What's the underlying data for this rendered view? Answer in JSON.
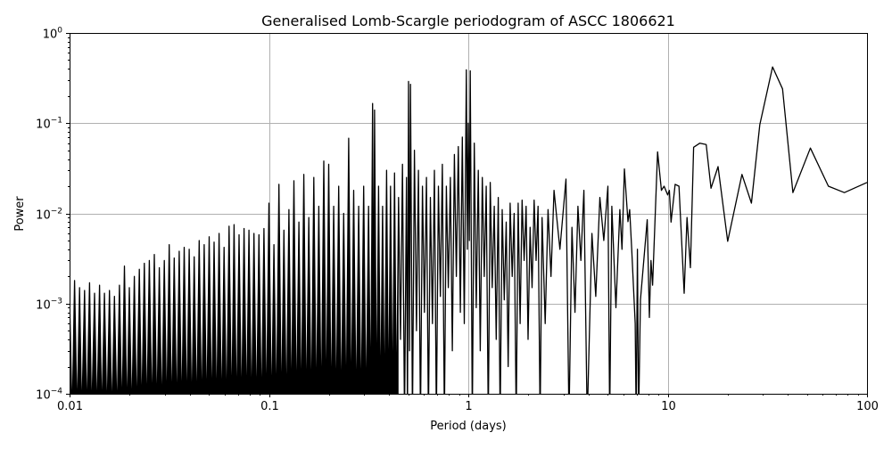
{
  "chart_data": {
    "type": "line",
    "title": "Generalised Lomb-Scargle periodogram of ASCC 1806621",
    "xlabel": "Period (days)",
    "ylabel": "Power",
    "x_scale": "log",
    "y_scale": "log",
    "xlim": [
      0.01,
      100
    ],
    "ylim": [
      0.0001,
      1
    ],
    "grid": true,
    "line_color": "#000000",
    "grid_color": "#b0b0b0",
    "x_ticks": [
      {
        "value": 0.01,
        "label": "0.01"
      },
      {
        "value": 0.1,
        "label": "0.1"
      },
      {
        "value": 1,
        "label": "1"
      },
      {
        "value": 10,
        "label": "10"
      },
      {
        "value": 100,
        "label": "100"
      }
    ],
    "y_ticks": [
      {
        "value": 0.0001,
        "base": "10",
        "exp": "−4"
      },
      {
        "value": 0.001,
        "base": "10",
        "exp": "−3"
      },
      {
        "value": 0.01,
        "base": "10",
        "exp": "−2"
      },
      {
        "value": 0.1,
        "base": "10",
        "exp": "−1"
      },
      {
        "value": 1,
        "base": "10",
        "exp": "0"
      }
    ],
    "series": [
      {
        "points": [
          [
            0.01,
            0.0012
          ],
          [
            0.0103,
            5e-05
          ],
          [
            0.01059,
            0.0018
          ],
          [
            0.0109,
            5e-05
          ],
          [
            0.01122,
            0.0015
          ],
          [
            0.0115,
            5e-05
          ],
          [
            0.01189,
            0.0014
          ],
          [
            0.0122,
            5e-05
          ],
          [
            0.01259,
            0.0017
          ],
          [
            0.0129,
            5e-05
          ],
          [
            0.01334,
            0.0013
          ],
          [
            0.0137,
            5e-05
          ],
          [
            0.01413,
            0.0016
          ],
          [
            0.0145,
            5e-05
          ],
          [
            0.01496,
            0.0013
          ],
          [
            0.0154,
            5e-05
          ],
          [
            0.01585,
            0.0014
          ],
          [
            0.0163,
            5e-05
          ],
          [
            0.01679,
            0.0012
          ],
          [
            0.0173,
            5e-05
          ],
          [
            0.01778,
            0.0016
          ],
          [
            0.0183,
            5e-05
          ],
          [
            0.01884,
            0.0026
          ],
          [
            0.0194,
            5e-05
          ],
          [
            0.01995,
            0.0015
          ],
          [
            0.0205,
            5e-05
          ],
          [
            0.02113,
            0.002
          ],
          [
            0.0217,
            5e-05
          ],
          [
            0.02239,
            0.0024
          ],
          [
            0.023,
            5e-05
          ],
          [
            0.02371,
            0.0028
          ],
          [
            0.0244,
            5e-05
          ],
          [
            0.02512,
            0.003
          ],
          [
            0.0259,
            5e-05
          ],
          [
            0.02661,
            0.0035
          ],
          [
            0.0274,
            5e-05
          ],
          [
            0.02818,
            0.0025
          ],
          [
            0.029,
            5e-05
          ],
          [
            0.02985,
            0.003
          ],
          [
            0.0307,
            5e-05
          ],
          [
            0.03162,
            0.0045
          ],
          [
            0.0325,
            5e-05
          ],
          [
            0.0335,
            0.0032
          ],
          [
            0.0345,
            5e-05
          ],
          [
            0.03548,
            0.0038
          ],
          [
            0.0365,
            5e-05
          ],
          [
            0.03758,
            0.0042
          ],
          [
            0.0387,
            5e-05
          ],
          [
            0.03981,
            0.004
          ],
          [
            0.041,
            5e-05
          ],
          [
            0.04217,
            0.0033
          ],
          [
            0.0434,
            5e-05
          ],
          [
            0.04467,
            0.005
          ],
          [
            0.046,
            5e-05
          ],
          [
            0.04732,
            0.0045
          ],
          [
            0.0487,
            5e-05
          ],
          [
            0.05012,
            0.0055
          ],
          [
            0.0516,
            5e-05
          ],
          [
            0.05309,
            0.0048
          ],
          [
            0.0547,
            5e-05
          ],
          [
            0.05623,
            0.006
          ],
          [
            0.0579,
            5e-05
          ],
          [
            0.05957,
            0.0042
          ],
          [
            0.0613,
            5e-05
          ],
          [
            0.0631,
            0.0072
          ],
          [
            0.065,
            5e-05
          ],
          [
            0.06683,
            0.0075
          ],
          [
            0.0688,
            5e-05
          ],
          [
            0.07079,
            0.0058
          ],
          [
            0.0729,
            5e-05
          ],
          [
            0.07499,
            0.0068
          ],
          [
            0.0772,
            5e-05
          ],
          [
            0.07943,
            0.0065
          ],
          [
            0.0818,
            5e-05
          ],
          [
            0.08414,
            0.006
          ],
          [
            0.0866,
            5e-05
          ],
          [
            0.08913,
            0.0058
          ],
          [
            0.0918,
            5e-05
          ],
          [
            0.09441,
            0.0068
          ],
          [
            0.0972,
            5e-05
          ],
          [
            0.1,
            0.013
          ],
          [
            0.103,
            5e-05
          ],
          [
            0.1059,
            0.0045
          ],
          [
            0.109,
            5e-05
          ],
          [
            0.1122,
            0.021
          ],
          [
            0.1155,
            5e-05
          ],
          [
            0.1189,
            0.0065
          ],
          [
            0.1224,
            5e-05
          ],
          [
            0.1259,
            0.011
          ],
          [
            0.1296,
            5e-05
          ],
          [
            0.1334,
            0.023
          ],
          [
            0.1373,
            5e-05
          ],
          [
            0.1413,
            0.008
          ],
          [
            0.1454,
            5e-05
          ],
          [
            0.1496,
            0.027
          ],
          [
            0.154,
            5e-05
          ],
          [
            0.1585,
            0.009
          ],
          [
            0.1631,
            5e-05
          ],
          [
            0.1679,
            0.025
          ],
          [
            0.1728,
            5e-05
          ],
          [
            0.1778,
            0.012
          ],
          [
            0.183,
            5e-05
          ],
          [
            0.1884,
            0.038
          ],
          [
            0.1939,
            5e-05
          ],
          [
            0.1995,
            0.035
          ],
          [
            0.2053,
            5e-05
          ],
          [
            0.2113,
            0.012
          ],
          [
            0.2175,
            5e-05
          ],
          [
            0.2239,
            0.02
          ],
          [
            0.2304,
            5e-05
          ],
          [
            0.2371,
            0.01
          ],
          [
            0.244,
            5e-05
          ],
          [
            0.2512,
            0.068
          ],
          [
            0.2585,
            5e-05
          ],
          [
            0.2661,
            0.018
          ],
          [
            0.2738,
            5e-05
          ],
          [
            0.2818,
            0.012
          ],
          [
            0.29,
            5e-05
          ],
          [
            0.2985,
            0.02
          ],
          [
            0.3072,
            5e-05
          ],
          [
            0.3162,
            0.012
          ],
          [
            0.3236,
            5e-05
          ],
          [
            0.3311,
            0.165
          ],
          [
            0.335,
            0.0002
          ],
          [
            0.3388,
            0.14
          ],
          [
            0.3467,
            5e-05
          ],
          [
            0.3548,
            0.02
          ],
          [
            0.3631,
            5e-05
          ],
          [
            0.3715,
            0.012
          ],
          [
            0.3802,
            5e-05
          ],
          [
            0.389,
            0.03
          ],
          [
            0.3981,
            5e-05
          ],
          [
            0.4074,
            0.02
          ],
          [
            0.4169,
            5e-05
          ],
          [
            0.4266,
            0.028
          ],
          [
            0.4365,
            5e-05
          ],
          [
            0.4467,
            0.015
          ],
          [
            0.4571,
            0.0004
          ],
          [
            0.4677,
            0.035
          ],
          [
            0.4786,
            5e-05
          ],
          [
            0.4898,
            0.025
          ],
          [
            0.4955,
            5e-05
          ],
          [
            0.5012,
            0.29
          ],
          [
            0.507,
            0.0003
          ],
          [
            0.5129,
            0.27
          ],
          [
            0.5248,
            5e-05
          ],
          [
            0.537,
            0.05
          ],
          [
            0.5495,
            0.0005
          ],
          [
            0.5623,
            0.03
          ],
          [
            0.5754,
            5e-05
          ],
          [
            0.5888,
            0.02
          ],
          [
            0.6026,
            0.0008
          ],
          [
            0.6166,
            0.025
          ],
          [
            0.631,
            5e-05
          ],
          [
            0.6457,
            0.015
          ],
          [
            0.6607,
            0.0006
          ],
          [
            0.6761,
            0.03
          ],
          [
            0.6918,
            5e-05
          ],
          [
            0.7079,
            0.02
          ],
          [
            0.7244,
            0.0012
          ],
          [
            0.7413,
            0.035
          ],
          [
            0.7586,
            5e-05
          ],
          [
            0.7762,
            0.02
          ],
          [
            0.7943,
            0.0015
          ],
          [
            0.8128,
            0.025
          ],
          [
            0.8318,
            0.0003
          ],
          [
            0.8511,
            0.045
          ],
          [
            0.871,
            0.002
          ],
          [
            0.8913,
            0.055
          ],
          [
            0.912,
            0.0008
          ],
          [
            0.9333,
            0.07
          ],
          [
            0.955,
            0.0006
          ],
          [
            0.9772,
            0.39
          ],
          [
            0.9886,
            0.004
          ],
          [
            1.0,
            0.1
          ],
          [
            1.011,
            0.005
          ],
          [
            1.023,
            0.38
          ],
          [
            1.047,
            5e-05
          ],
          [
            1.072,
            0.06
          ],
          [
            1.096,
            0.0009
          ],
          [
            1.122,
            0.03
          ],
          [
            1.148,
            0.0003
          ],
          [
            1.175,
            0.025
          ],
          [
            1.202,
            0.002
          ],
          [
            1.23,
            0.02
          ],
          [
            1.259,
            5e-05
          ],
          [
            1.288,
            0.022
          ],
          [
            1.318,
            0.0015
          ],
          [
            1.349,
            0.012
          ],
          [
            1.38,
            0.0004
          ],
          [
            1.413,
            0.015
          ],
          [
            1.445,
            5e-05
          ],
          [
            1.479,
            0.011
          ],
          [
            1.514,
            0.0011
          ],
          [
            1.549,
            0.008
          ],
          [
            1.585,
            0.0002
          ],
          [
            1.622,
            0.013
          ],
          [
            1.66,
            0.002
          ],
          [
            1.698,
            0.01
          ],
          [
            1.738,
            5e-05
          ],
          [
            1.778,
            0.013
          ],
          [
            1.82,
            0.0006
          ],
          [
            1.862,
            0.014
          ],
          [
            1.905,
            0.003
          ],
          [
            1.95,
            0.012
          ],
          [
            1.995,
            0.0004
          ],
          [
            2.042,
            0.007
          ],
          [
            2.089,
            0.0015
          ],
          [
            2.138,
            0.014
          ],
          [
            2.188,
            0.003
          ],
          [
            2.239,
            0.012
          ],
          [
            2.291,
            5e-05
          ],
          [
            2.344,
            0.009
          ],
          [
            2.43,
            0.0006
          ],
          [
            2.512,
            0.011
          ],
          [
            2.6,
            0.002
          ],
          [
            2.692,
            0.018
          ],
          [
            2.88,
            0.004
          ],
          [
            3.09,
            0.024
          ],
          [
            3.2,
            5e-05
          ],
          [
            3.311,
            0.007
          ],
          [
            3.43,
            0.0008
          ],
          [
            3.548,
            0.012
          ],
          [
            3.67,
            0.003
          ],
          [
            3.802,
            0.018
          ],
          [
            3.95,
            5e-05
          ],
          [
            4.169,
            0.006
          ],
          [
            4.36,
            0.0012
          ],
          [
            4.571,
            0.015
          ],
          [
            4.78,
            0.005
          ],
          [
            5.012,
            0.02
          ],
          [
            5.12,
            5e-05
          ],
          [
            5.248,
            0.012
          ],
          [
            5.5,
            0.0009
          ],
          [
            5.754,
            0.011
          ],
          [
            5.9,
            0.004
          ],
          [
            6.07,
            0.031
          ],
          [
            6.32,
            0.0081
          ],
          [
            6.45,
            0.011
          ],
          [
            6.6,
            0.004
          ],
          [
            6.87,
            0.0006
          ],
          [
            6.95,
            5e-05
          ],
          [
            7.05,
            0.004
          ],
          [
            7.15,
            5e-05
          ],
          [
            7.3,
            0.0011
          ],
          [
            7.9,
            0.0085
          ],
          [
            8.1,
            0.0007
          ],
          [
            8.25,
            0.003
          ],
          [
            8.4,
            0.0016
          ],
          [
            8.9,
            0.048
          ],
          [
            9.3,
            0.018
          ],
          [
            9.6,
            0.02
          ],
          [
            10.0,
            0.016
          ],
          [
            10.2,
            0.018
          ],
          [
            10.4,
            0.008
          ],
          [
            10.9,
            0.021
          ],
          [
            11.4,
            0.02
          ],
          [
            12.1,
            0.0013
          ],
          [
            12.5,
            0.009
          ],
          [
            13.0,
            0.0025
          ],
          [
            13.5,
            0.054
          ],
          [
            14.5,
            0.06
          ],
          [
            15.6,
            0.058
          ],
          [
            16.5,
            0.019
          ],
          [
            17.9,
            0.033
          ],
          [
            20.0,
            0.0049
          ],
          [
            23.6,
            0.027
          ],
          [
            26.3,
            0.013
          ],
          [
            29.0,
            0.096
          ],
          [
            33.6,
            0.42
          ],
          [
            37.7,
            0.24
          ],
          [
            42.5,
            0.017
          ],
          [
            52.0,
            0.053
          ],
          [
            64.0,
            0.02
          ],
          [
            77.0,
            0.017
          ],
          [
            100.0,
            0.022
          ]
        ]
      }
    ]
  }
}
